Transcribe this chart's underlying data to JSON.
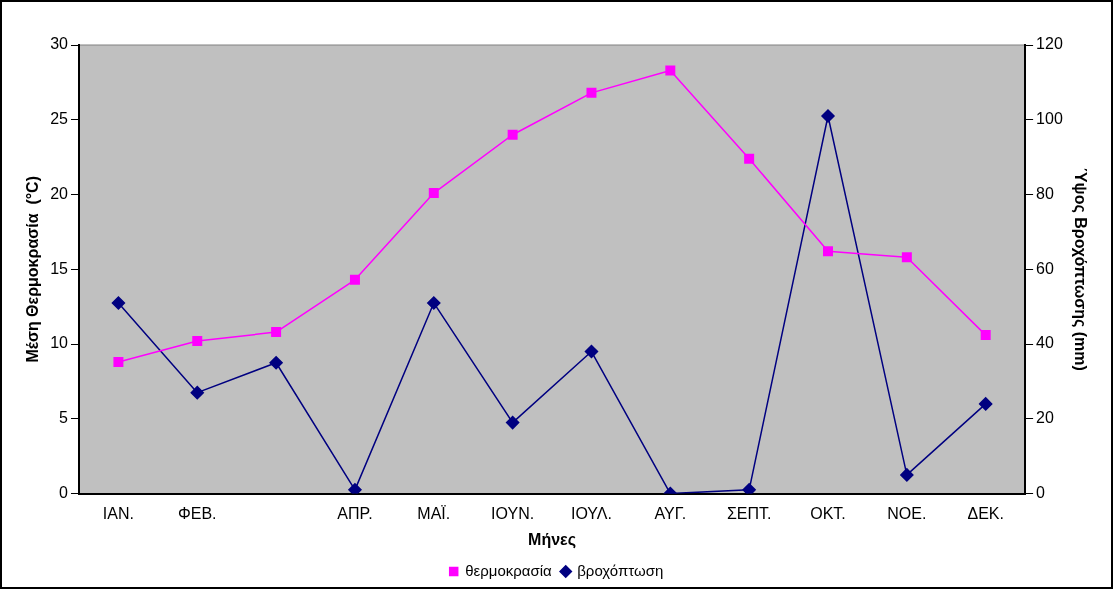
{
  "chart_data": {
    "type": "line",
    "xlabel": "Μήνες",
    "ylabel": "Μέση Θερμοκρασία  (°C)",
    "y2label": "Ύψος Βροχόπτωσης (mm)",
    "categories": [
      "ΙΑΝ.",
      "ΦΕΒ.",
      null,
      "ΑΠΡ.",
      "ΜΑΪ.",
      "ΙΟΥΝ.",
      "ΙΟΥΛ.",
      "ΑΥΓ.",
      "ΣΕΠΤ.",
      "ΟΚΤ.",
      "ΝΟΕ.",
      "ΔΕΚ."
    ],
    "series": [
      {
        "name": "θερμοκρασία",
        "color": "#ff00ff",
        "marker": "square",
        "values": [
          8.8,
          10.2,
          10.8,
          14.3,
          20.1,
          24.0,
          26.8,
          28.3,
          22.4,
          16.2,
          15.8,
          10.6
        ]
      },
      {
        "name": "βροχόπτωση",
        "color": "#000080",
        "marker": "diamond",
        "axis": "y2",
        "values": [
          51,
          27,
          35,
          1,
          51,
          19,
          38,
          0,
          1,
          101,
          5,
          24
        ]
      }
    ],
    "ylim": [
      0,
      30
    ],
    "yticks": [
      0,
      5,
      10,
      15,
      20,
      25,
      30
    ],
    "y2lim": [
      0,
      120
    ],
    "y2ticks": [
      0,
      20,
      40,
      60,
      80,
      100,
      120
    ],
    "grid": false,
    "legend": "bottom"
  }
}
